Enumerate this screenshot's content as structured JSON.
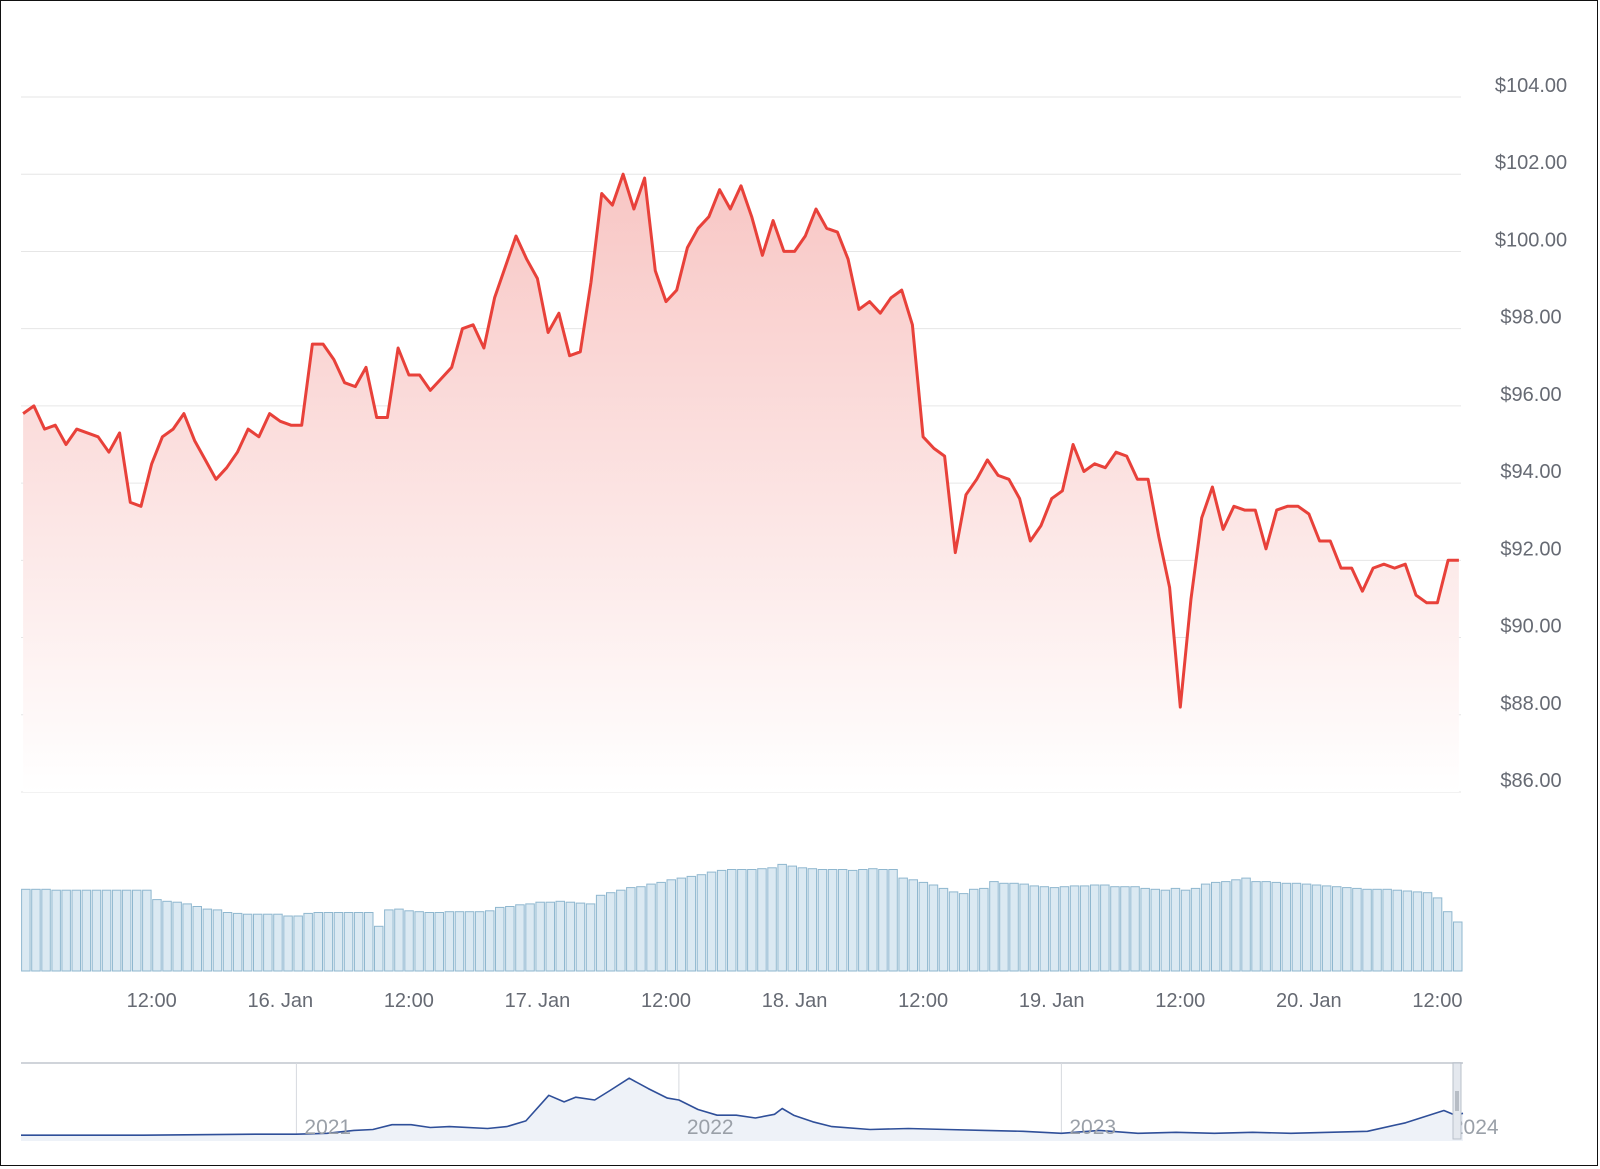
{
  "chart_data": [
    {
      "type": "area",
      "y_tick_labels": [
        "$104.00",
        "$102.00",
        "$100.00",
        "$98.00",
        "$96.00",
        "$94.00",
        "$92.00",
        "$90.00",
        "$88.00",
        "$86.00"
      ],
      "x_tick_labels": [
        "12:00",
        "16. Jan",
        "12:00",
        "17. Jan",
        "12:00",
        "18. Jan",
        "12:00",
        "19. Jan",
        "12:00",
        "20. Jan",
        "12:00"
      ],
      "x_ticks_hours": [
        12,
        24,
        36,
        48,
        60,
        72,
        84,
        96,
        108,
        120,
        132
      ],
      "ylim": [
        86,
        104
      ],
      "x_range_hours": [
        -0.2,
        134.2
      ],
      "x_unit": "hours from 15 Jan 00:00",
      "grid": true,
      "colors": {
        "line": "#e8413a",
        "fill_top": "#f8c6c4",
        "fill_bottom": "#ffffff",
        "grid": "#e6e6e6"
      },
      "price": [
        95.8,
        96.0,
        95.4,
        95.5,
        95.0,
        95.4,
        95.3,
        95.2,
        94.8,
        95.3,
        93.5,
        93.4,
        94.5,
        95.2,
        95.4,
        95.8,
        95.1,
        94.6,
        94.1,
        94.4,
        94.8,
        95.4,
        95.2,
        95.8,
        95.6,
        95.5,
        95.5,
        97.6,
        97.6,
        97.2,
        96.6,
        96.5,
        97.0,
        95.7,
        95.7,
        97.5,
        96.8,
        96.8,
        96.4,
        96.7,
        97.0,
        98.0,
        98.1,
        97.5,
        98.8,
        99.6,
        100.4,
        99.8,
        99.3,
        97.9,
        98.4,
        97.3,
        97.4,
        99.2,
        101.5,
        101.2,
        102.0,
        101.1,
        101.9,
        99.5,
        98.7,
        99.0,
        100.1,
        100.6,
        100.9,
        101.6,
        101.1,
        101.7,
        100.9,
        99.9,
        100.8,
        100.0,
        100.0,
        100.4,
        101.1,
        100.6,
        100.5,
        99.8,
        98.5,
        98.7,
        98.4,
        98.8,
        99.0,
        98.1,
        95.2,
        94.9,
        94.7,
        92.2,
        93.7,
        94.1,
        94.6,
        94.2,
        94.1,
        93.6,
        92.5,
        92.9,
        93.6,
        93.8,
        95.0,
        94.3,
        94.5,
        94.4,
        94.8,
        94.7,
        94.1,
        94.1,
        92.6,
        91.3,
        88.2,
        91.0,
        93.1,
        93.9,
        92.8,
        93.4,
        93.3,
        93.3,
        92.3,
        93.3,
        93.4,
        93.4,
        93.2,
        92.5,
        92.5,
        91.8,
        91.8,
        91.2,
        91.8,
        91.9,
        91.8,
        91.9,
        91.1,
        90.9,
        90.9,
        92.0,
        92.0
      ],
      "volume_relative": [
        0.95,
        0.95,
        0.95,
        0.94,
        0.94,
        0.94,
        0.94,
        0.94,
        0.94,
        0.94,
        0.94,
        0.94,
        0.94,
        0.83,
        0.81,
        0.8,
        0.78,
        0.75,
        0.72,
        0.71,
        0.68,
        0.67,
        0.66,
        0.66,
        0.66,
        0.66,
        0.64,
        0.64,
        0.67,
        0.68,
        0.68,
        0.68,
        0.68,
        0.68,
        0.68,
        0.52,
        0.71,
        0.72,
        0.7,
        0.69,
        0.68,
        0.68,
        0.69,
        0.69,
        0.69,
        0.69,
        0.7,
        0.74,
        0.75,
        0.77,
        0.78,
        0.8,
        0.8,
        0.81,
        0.8,
        0.79,
        0.78,
        0.88,
        0.91,
        0.94,
        0.97,
        0.98,
        1.01,
        1.03,
        1.06,
        1.08,
        1.1,
        1.12,
        1.15,
        1.17,
        1.18,
        1.18,
        1.18,
        1.19,
        1.2,
        1.24,
        1.22,
        1.2,
        1.19,
        1.18,
        1.18,
        1.18,
        1.17,
        1.18,
        1.19,
        1.18,
        1.18,
        1.08,
        1.06,
        1.03,
        1.0,
        0.96,
        0.92,
        0.9,
        0.95,
        0.96,
        1.04,
        1.02,
        1.02,
        1.01,
        0.99,
        0.98,
        0.97,
        0.98,
        0.99,
        0.99,
        1.0,
        1.0,
        0.98,
        0.98,
        0.98,
        0.96,
        0.95,
        0.94,
        0.96,
        0.94,
        0.96,
        1.01,
        1.03,
        1.04,
        1.06,
        1.08,
        1.04,
        1.04,
        1.03,
        1.02,
        1.02,
        1.01,
        1.0,
        0.99,
        0.98,
        0.97,
        0.96,
        0.95,
        0.95,
        0.95,
        0.94,
        0.93,
        0.92,
        0.91,
        0.85,
        0.69,
        0.57
      ]
    },
    {
      "type": "line",
      "role": "navigator",
      "x_tick_labels": [
        "2021",
        "2022",
        "2023",
        "2024"
      ],
      "x_ticks_year": [
        2021,
        2022,
        2023,
        2024
      ],
      "x_range_year": [
        2020.28,
        2024.05
      ],
      "colors": {
        "line": "#2f4f99",
        "fill": "#eef2f8",
        "grid": "#d6d9de",
        "handle": "#c9ced6"
      },
      "points": [
        [
          2020.28,
          3
        ],
        [
          2020.6,
          3
        ],
        [
          2020.9,
          4
        ],
        [
          2021.0,
          4
        ],
        [
          2021.08,
          5
        ],
        [
          2021.15,
          8
        ],
        [
          2021.2,
          9
        ],
        [
          2021.25,
          14
        ],
        [
          2021.3,
          14
        ],
        [
          2021.35,
          11
        ],
        [
          2021.4,
          12
        ],
        [
          2021.5,
          10
        ],
        [
          2021.55,
          12
        ],
        [
          2021.6,
          18
        ],
        [
          2021.66,
          45
        ],
        [
          2021.7,
          38
        ],
        [
          2021.73,
          43
        ],
        [
          2021.78,
          40
        ],
        [
          2021.82,
          50
        ],
        [
          2021.87,
          63
        ],
        [
          2021.92,
          52
        ],
        [
          2021.97,
          42
        ],
        [
          2022.0,
          40
        ],
        [
          2022.05,
          30
        ],
        [
          2022.1,
          24
        ],
        [
          2022.15,
          24
        ],
        [
          2022.2,
          21
        ],
        [
          2022.25,
          25
        ],
        [
          2022.27,
          31
        ],
        [
          2022.3,
          24
        ],
        [
          2022.35,
          17
        ],
        [
          2022.4,
          12
        ],
        [
          2022.5,
          9
        ],
        [
          2022.6,
          10
        ],
        [
          2022.7,
          9
        ],
        [
          2022.8,
          8
        ],
        [
          2022.9,
          7
        ],
        [
          2023.0,
          5
        ],
        [
          2023.1,
          8
        ],
        [
          2023.2,
          5
        ],
        [
          2023.3,
          6
        ],
        [
          2023.4,
          5
        ],
        [
          2023.5,
          6
        ],
        [
          2023.6,
          5
        ],
        [
          2023.7,
          6
        ],
        [
          2023.8,
          7
        ],
        [
          2023.9,
          16
        ],
        [
          2024.0,
          29
        ],
        [
          2024.03,
          24
        ],
        [
          2024.05,
          26
        ]
      ]
    }
  ]
}
